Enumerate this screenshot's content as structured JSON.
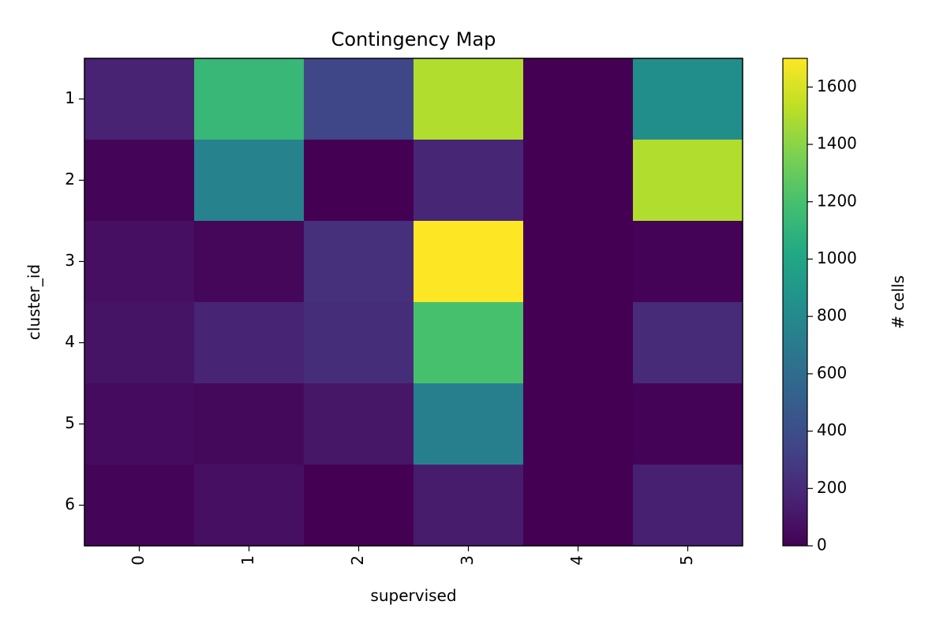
{
  "chart_data": {
    "type": "heatmap",
    "title": "Contingency Map",
    "xlabel": "supervised",
    "ylabel": "cluster_id",
    "x_categories": [
      "0",
      "1",
      "2",
      "3",
      "4",
      "5"
    ],
    "y_categories": [
      "1",
      "2",
      "3",
      "4",
      "5",
      "6"
    ],
    "values": [
      [
        160,
        1130,
        360,
        1500,
        0,
        830
      ],
      [
        20,
        750,
        0,
        180,
        0,
        1500
      ],
      [
        70,
        30,
        230,
        1700,
        0,
        10
      ],
      [
        90,
        170,
        220,
        1200,
        0,
        200
      ],
      [
        50,
        40,
        100,
        730,
        0,
        10
      ],
      [
        20,
        70,
        0,
        130,
        0,
        150
      ]
    ],
    "colorbar": {
      "label": "# cells",
      "min": 0,
      "max": 1700,
      "ticks": [
        "0",
        "200",
        "400",
        "600",
        "800",
        "1000",
        "1200",
        "1400",
        "1600"
      ],
      "colormap": "viridis"
    },
    "grid": false
  }
}
